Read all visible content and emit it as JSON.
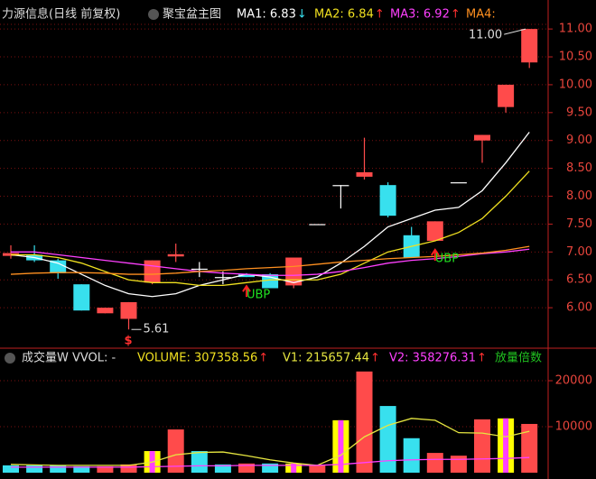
{
  "chart_data": [
    {
      "type": "candlestick",
      "title": "力源信息(日线 前复权)",
      "subtitle": "聚宝盆主图",
      "open": [
        6.93,
        6.95,
        6.85,
        6.42,
        5.9,
        5.8,
        6.45,
        6.92,
        6.7,
        6.55,
        6.6,
        6.6,
        6.4,
        7.5,
        8.2,
        8.35,
        8.2,
        7.3,
        7.2,
        8.25,
        9.0,
        9.6,
        10.4
      ],
      "high": [
        7.12,
        7.12,
        6.88,
        6.42,
        6.0,
        6.1,
        6.85,
        7.15,
        6.82,
        6.65,
        6.62,
        6.62,
        6.9,
        7.5,
        8.2,
        9.05,
        8.25,
        7.45,
        7.55,
        8.25,
        9.1,
        10.0,
        11.0
      ],
      "low": [
        6.88,
        6.82,
        6.52,
        5.95,
        5.9,
        5.61,
        6.42,
        6.82,
        6.55,
        6.42,
        6.55,
        6.35,
        6.35,
        7.5,
        7.78,
        8.3,
        7.62,
        6.9,
        7.2,
        8.25,
        8.6,
        9.5,
        10.3
      ],
      "close": [
        6.98,
        6.85,
        6.62,
        5.95,
        6.0,
        6.1,
        6.85,
        6.96,
        6.7,
        6.55,
        6.55,
        6.35,
        6.9,
        7.5,
        8.2,
        8.43,
        7.65,
        6.9,
        7.55,
        8.25,
        9.1,
        10.0,
        11.0
      ],
      "up_color": "#ff4b4b",
      "down_color": "#38e0ee",
      "flat_color": "#ffffff",
      "series": [
        {
          "name": "MA1: 6.83",
          "trend": "↓",
          "color": "#ffffff",
          "values": [
            6.95,
            6.9,
            6.8,
            6.6,
            6.4,
            6.25,
            6.2,
            6.25,
            6.4,
            6.5,
            6.6,
            6.55,
            6.45,
            6.55,
            6.8,
            7.1,
            7.45,
            7.6,
            7.75,
            7.8,
            8.1,
            8.6,
            9.15
          ]
        },
        {
          "name": "MA2: 6.84",
          "trend": "↑",
          "color": "#f0e020",
          "values": [
            6.95,
            6.95,
            6.9,
            6.8,
            6.65,
            6.5,
            6.45,
            6.45,
            6.4,
            6.4,
            6.45,
            6.5,
            6.5,
            6.5,
            6.6,
            6.8,
            7.0,
            7.1,
            7.2,
            7.35,
            7.6,
            8.0,
            8.45
          ]
        },
        {
          "name": "MA3: 6.92",
          "trend": "↑",
          "color": "#ff40ff",
          "values": [
            7.0,
            7.0,
            6.95,
            6.9,
            6.85,
            6.8,
            6.75,
            6.7,
            6.65,
            6.62,
            6.6,
            6.58,
            6.58,
            6.6,
            6.65,
            6.72,
            6.8,
            6.85,
            6.88,
            6.92,
            6.97,
            7.0,
            7.05
          ]
        },
        {
          "name": "MA4:",
          "color": "#ff9020",
          "values": [
            6.6,
            6.62,
            6.63,
            6.63,
            6.62,
            6.6,
            6.6,
            6.62,
            6.65,
            6.67,
            6.7,
            6.72,
            6.74,
            6.78,
            6.82,
            6.85,
            6.88,
            6.9,
            6.92,
            6.95,
            6.98,
            7.03,
            7.1
          ]
        }
      ],
      "annotations": [
        "5.61",
        "11.00",
        "UBP",
        "UBP",
        "$"
      ],
      "ylim": [
        5.29,
        11.52
      ],
      "yticks": [
        {
          "value": 6,
          "label": "6.00"
        },
        {
          "value": 6.5,
          "label": "6.50"
        },
        {
          "value": 7,
          "label": "7.00"
        },
        {
          "value": 7.5,
          "label": "7.50"
        },
        {
          "value": 8,
          "label": "8.00"
        },
        {
          "value": 8.5,
          "label": "8.50"
        },
        {
          "value": 9,
          "label": "9.00"
        },
        {
          "value": 9.5,
          "label": "9.50"
        },
        {
          "value": 10,
          "label": "10.00"
        },
        {
          "value": 10.5,
          "label": "10.50"
        },
        {
          "value": 11,
          "label": "11.00"
        }
      ],
      "grid": true
    },
    {
      "type": "bar",
      "title": "成交量W VVOL: -",
      "series": [
        {
          "name": "VOLUME: 307358.56",
          "trend": "↑",
          "color": "#f0e020",
          "values": [
            1600,
            1600,
            1600,
            1400,
            1400,
            1800,
            4700,
            9400,
            4700,
            1800,
            2000,
            2000,
            2000,
            1600,
            11400,
            22000,
            14500,
            7500,
            4300,
            3700,
            11600,
            11800,
            10600
          ],
          "colors": [
            "#38e0ee",
            "#38e0ee",
            "#38e0ee",
            "#38e0ee",
            "#ff4b4b",
            "#ff4b4b",
            "#ffff00",
            "#ff4b4b",
            "#38e0ee",
            "#38e0ee",
            "#ff4b4b",
            "#38e0ee",
            "#ffff00",
            "#ff4b4b",
            "#ffff00",
            "#ff4b4b",
            "#38e0ee",
            "#38e0ee",
            "#ff4b4b",
            "#ff4b4b",
            "#ff4b4b",
            "#ffff00",
            "#ff4b4b"
          ]
        },
        {
          "name": "V1: 215657.44",
          "trend": "↑",
          "color": "#e6e640",
          "values": [
            1800,
            1700,
            1600,
            1600,
            1600,
            1600,
            2300,
            3900,
            4400,
            4500,
            3700,
            2800,
            2100,
            1600,
            3800,
            7800,
            10300,
            11800,
            11400,
            8700,
            8600,
            7800,
            9000
          ]
        },
        {
          "name": "V2: 358276.31",
          "trend": "↑",
          "color": "#ff40ff",
          "values": [
            1200,
            1200,
            1200,
            1200,
            1200,
            1200,
            1300,
            1400,
            1500,
            1500,
            1600,
            1600,
            1600,
            1600,
            1800,
            2200,
            2600,
            2800,
            2900,
            2900,
            3000,
            3100,
            3300
          ]
        },
        {
          "name": "放量倍数",
          "color": "#20c020"
        }
      ],
      "ylim": [
        -1370,
        22750
      ],
      "yticks": [
        10000,
        20000
      ],
      "grid": true
    }
  ]
}
